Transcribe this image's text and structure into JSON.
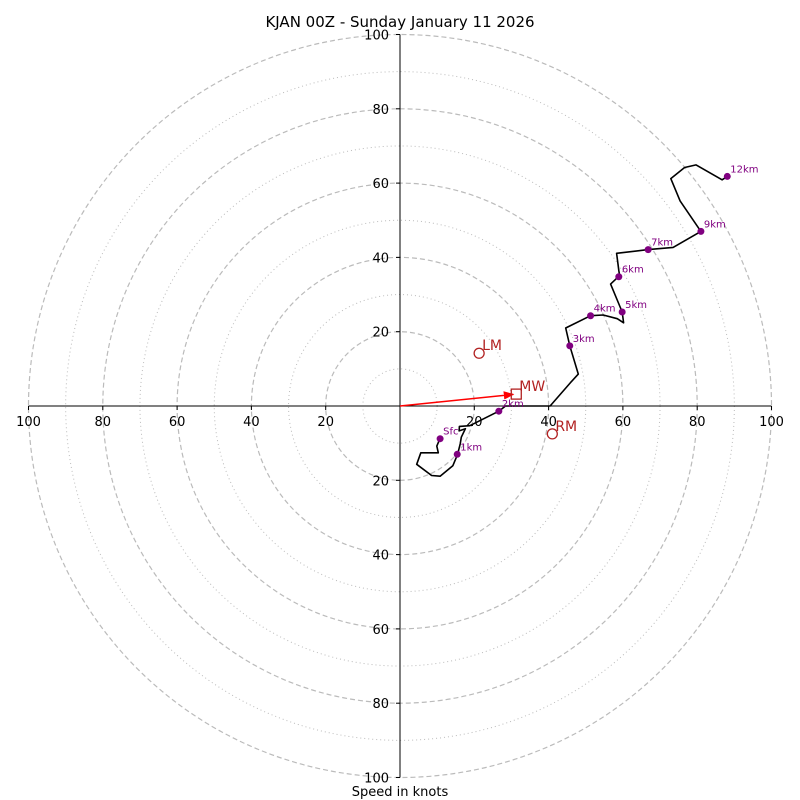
{
  "chart_data": {
    "type": "hodograph",
    "title": "KJAN 00Z - Sunday January 11 2026",
    "xlabel": "Speed in knots",
    "axis_range": [
      -100,
      100
    ],
    "rings_major": [
      20,
      40,
      60,
      80,
      100
    ],
    "rings_minor": [
      10,
      30,
      50,
      70,
      90
    ],
    "ticks": {
      "x": [
        {
          "value": -100,
          "label": "100"
        },
        {
          "value": -80,
          "label": "80"
        },
        {
          "value": -60,
          "label": "60"
        },
        {
          "value": -40,
          "label": "40"
        },
        {
          "value": -20,
          "label": "20"
        },
        {
          "value": 20,
          "label": "20"
        },
        {
          "value": 40,
          "label": "40"
        },
        {
          "value": 60,
          "label": "60"
        },
        {
          "value": 80,
          "label": "80"
        },
        {
          "value": 100,
          "label": "100"
        }
      ],
      "y": [
        {
          "value": 100,
          "label": "100"
        },
        {
          "value": 80,
          "label": "80"
        },
        {
          "value": 60,
          "label": "60"
        },
        {
          "value": 40,
          "label": "40"
        },
        {
          "value": 20,
          "label": "20"
        },
        {
          "value": -20,
          "label": "20"
        },
        {
          "value": -40,
          "label": "40"
        },
        {
          "value": -60,
          "label": "60"
        },
        {
          "value": -80,
          "label": "80"
        },
        {
          "value": -100,
          "label": "100"
        }
      ]
    },
    "trace": [
      [
        10.7,
        -8.9
      ],
      [
        9.9,
        -10.8
      ],
      [
        10.3,
        -12.6
      ],
      [
        5.6,
        -12.6
      ],
      [
        4.5,
        -15.7
      ],
      [
        8.5,
        -18.7
      ],
      [
        10.8,
        -18.9
      ],
      [
        14.2,
        -16.1
      ],
      [
        15.5,
        -13.0
      ],
      [
        16.2,
        -10.2
      ],
      [
        16.5,
        -8.4
      ],
      [
        17.6,
        -6.1
      ],
      [
        15.9,
        -6.7
      ],
      [
        16.0,
        -5.5
      ],
      [
        18.8,
        -5.3
      ],
      [
        26.6,
        -1.4
      ],
      [
        28.4,
        0.0
      ],
      [
        40.4,
        0.0
      ],
      [
        45.9,
        6.3
      ],
      [
        48.0,
        8.6
      ],
      [
        45.7,
        16.2
      ],
      [
        44.6,
        21.0
      ],
      [
        51.3,
        24.3
      ],
      [
        54.7,
        24.5
      ],
      [
        58.5,
        23.5
      ],
      [
        60.2,
        22.4
      ],
      [
        59.8,
        25.3
      ],
      [
        56.7,
        32.8
      ],
      [
        59.1,
        35.1
      ],
      [
        58.9,
        36.5
      ],
      [
        58.3,
        41.1
      ],
      [
        66.8,
        42.1
      ],
      [
        73.5,
        42.7
      ],
      [
        81.0,
        47.0
      ],
      [
        75.4,
        55.2
      ],
      [
        72.9,
        61.2
      ],
      [
        76.6,
        64.2
      ],
      [
        79.7,
        64.9
      ],
      [
        86.7,
        60.9
      ],
      [
        88.1,
        61.8
      ]
    ],
    "height_markers": [
      {
        "label": "Sfc",
        "u": 10.8,
        "v": -8.8
      },
      {
        "label": "1km",
        "u": 15.4,
        "v": -13.0
      },
      {
        "label": "2km",
        "u": 26.6,
        "v": -1.4
      },
      {
        "label": "3km",
        "u": 45.7,
        "v": 16.2
      },
      {
        "label": "4km",
        "u": 51.3,
        "v": 24.3
      },
      {
        "label": "5km",
        "u": 59.8,
        "v": 25.3
      },
      {
        "label": "6km",
        "u": 58.9,
        "v": 34.8
      },
      {
        "label": "7km",
        "u": 66.8,
        "v": 42.1
      },
      {
        "label": "9km",
        "u": 81.0,
        "v": 47.0
      },
      {
        "label": "12km",
        "u": 88.1,
        "v": 61.8
      }
    ],
    "motions": [
      {
        "label": "LM",
        "u": 21.3,
        "v": 14.2,
        "marker": "circle"
      },
      {
        "label": "MW",
        "u": 31.3,
        "v": 3.2,
        "marker": "square"
      },
      {
        "label": "RM",
        "u": 41.0,
        "v": -7.5,
        "marker": "circle"
      }
    ],
    "arrow": {
      "from": [
        0,
        0
      ],
      "to": [
        31.3,
        3.2
      ]
    },
    "colors": {
      "grid": "#bbbbbb",
      "trace": "#000000",
      "height_marker": "#800080",
      "motion": "#b22222",
      "arrow": "#ff0000"
    }
  }
}
